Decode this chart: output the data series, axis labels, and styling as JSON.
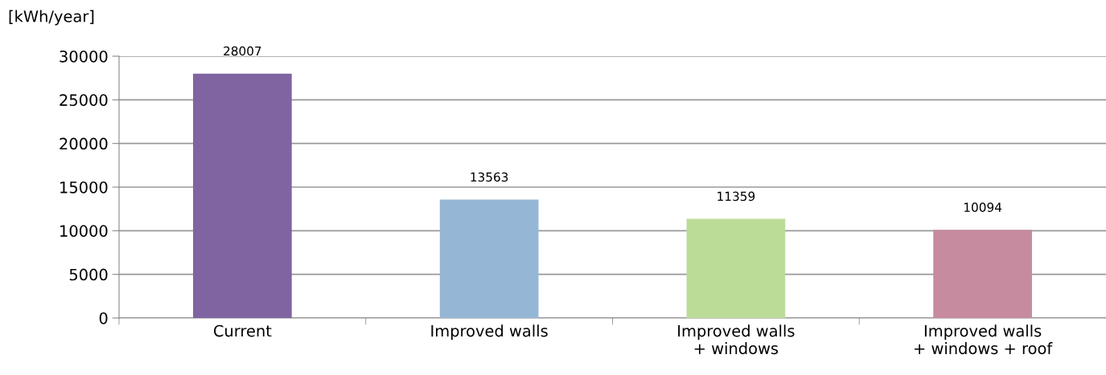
{
  "chart_data": {
    "type": "bar",
    "ylabel": "[kWh/year]",
    "categories": [
      "Current",
      "Improved walls",
      "Improved walls\n+ windows",
      "Improved walls\n+ windows + roof"
    ],
    "values": [
      28007,
      13563,
      11359,
      10094
    ],
    "colors": [
      "#8064a2",
      "#95b7d5",
      "#bbdc97",
      "#c68b9e"
    ],
    "ylim": [
      0,
      30000
    ],
    "yticks": [
      0,
      5000,
      10000,
      15000,
      20000,
      25000,
      30000
    ],
    "grid": "y",
    "data_labels": true
  }
}
